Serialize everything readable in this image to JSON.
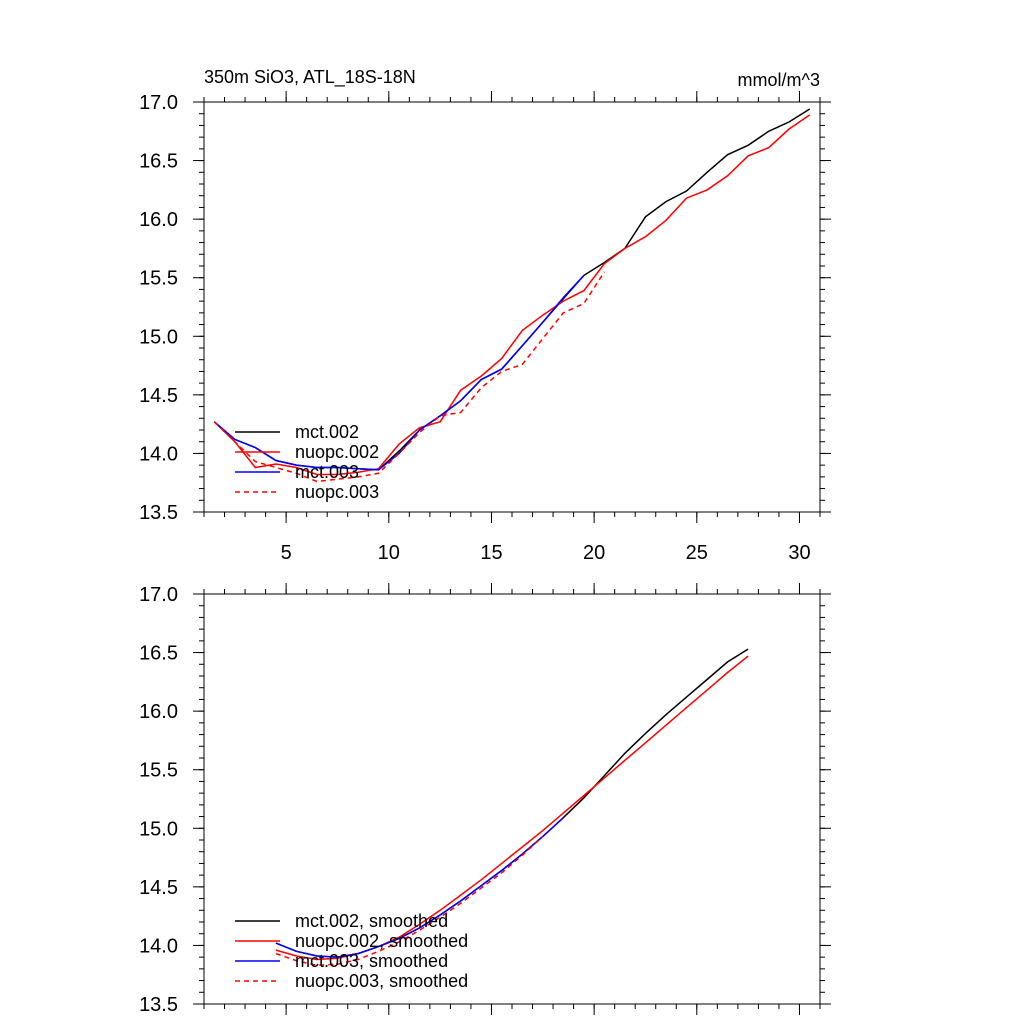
{
  "header": {
    "left_title": "350m SiO3, ATL_18S-18N",
    "right_title": "mmol/m^3"
  },
  "chart_data": [
    {
      "type": "line",
      "panel": "top",
      "xlim": [
        1,
        31
      ],
      "ylim": [
        13.5,
        17.0
      ],
      "x_ticks": [
        5,
        10,
        15,
        20,
        25,
        30
      ],
      "x_tick_labels": [
        "5",
        "10",
        "15",
        "20",
        "25",
        "30"
      ],
      "y_ticks": [
        13.5,
        14.0,
        14.5,
        15.0,
        15.5,
        16.0,
        16.5,
        17.0
      ],
      "y_tick_labels": [
        "13.5",
        "14.0",
        "14.5",
        "15.0",
        "15.5",
        "16.0",
        "16.5",
        "17.0"
      ],
      "legend_position": "lower-left",
      "series": [
        {
          "name": "mct.002",
          "color": "#000000",
          "dash": "solid",
          "x": [
            1.5,
            2.5,
            3.5,
            4.5,
            5.5,
            6.5,
            7.5,
            8.5,
            9.5,
            10.5,
            11.5,
            12.5,
            13.5,
            14.5,
            15.5,
            16.5,
            17.5,
            18.5,
            19.5,
            20.5,
            21.5,
            22.5,
            23.5,
            24.5,
            25.5,
            26.5,
            27.5,
            28.5,
            29.5,
            30.5
          ],
          "y": [
            14.27,
            14.12,
            14.05,
            13.94,
            13.9,
            13.88,
            13.88,
            13.87,
            13.86,
            14.02,
            14.2,
            14.32,
            14.45,
            14.63,
            14.72,
            14.92,
            15.12,
            15.32,
            15.52,
            15.63,
            15.75,
            16.02,
            16.15,
            16.24,
            16.4,
            16.55,
            16.63,
            16.75,
            16.83,
            16.94
          ]
        },
        {
          "name": "nuopc.002",
          "color": "#ff0000",
          "dash": "solid",
          "x": [
            1.5,
            2.5,
            3.5,
            4.5,
            5.5,
            6.5,
            7.5,
            8.5,
            9.5,
            10.5,
            11.5,
            12.5,
            13.5,
            14.5,
            15.5,
            16.5,
            17.5,
            18.5,
            19.5,
            20.5,
            21.5,
            22.5,
            23.5,
            24.5,
            25.5,
            26.5,
            27.5,
            28.5,
            29.5,
            30.5
          ],
          "y": [
            14.27,
            14.1,
            13.88,
            13.91,
            13.88,
            13.82,
            13.82,
            13.84,
            13.87,
            14.08,
            14.22,
            14.27,
            14.54,
            14.66,
            14.81,
            15.05,
            15.18,
            15.3,
            15.39,
            15.62,
            15.75,
            15.85,
            15.99,
            16.18,
            16.25,
            16.37,
            16.54,
            16.61,
            16.77,
            16.89
          ]
        },
        {
          "name": "mct.003",
          "color": "#0000ff",
          "dash": "solid",
          "x": [
            1.5,
            2.5,
            3.5,
            4.5,
            5.5,
            6.5,
            7.5,
            8.5,
            9.5,
            10.5,
            11.5,
            12.5,
            13.5,
            14.5,
            15.5,
            16.5,
            17.5,
            18.5,
            19.5
          ],
          "y": [
            14.27,
            14.12,
            14.05,
            13.94,
            13.9,
            13.88,
            13.88,
            13.87,
            13.86,
            14.0,
            14.2,
            14.32,
            14.45,
            14.63,
            14.72,
            14.92,
            15.12,
            15.33,
            15.52
          ]
        },
        {
          "name": "nuopc.003",
          "color": "#ff0000",
          "dash": "dashed",
          "x": [
            1.5,
            2.5,
            3.5,
            4.5,
            5.5,
            6.5,
            7.5,
            8.5,
            9.5,
            10.5,
            11.5,
            12.5,
            13.5,
            14.5,
            15.5,
            16.5,
            17.5,
            18.5,
            19.5,
            20.5
          ],
          "y": [
            14.27,
            14.1,
            13.93,
            13.88,
            13.83,
            13.76,
            13.78,
            13.8,
            13.83,
            14.0,
            14.18,
            14.32,
            14.35,
            14.56,
            14.7,
            14.76,
            14.98,
            15.2,
            15.28,
            15.55
          ]
        }
      ]
    },
    {
      "type": "line",
      "panel": "bottom",
      "xlim": [
        1,
        31
      ],
      "ylim": [
        13.5,
        17.0
      ],
      "x_ticks": [
        5,
        10,
        15,
        20,
        25,
        30
      ],
      "y_ticks": [
        13.5,
        14.0,
        14.5,
        15.0,
        15.5,
        16.0,
        16.5,
        17.0
      ],
      "y_tick_labels": [
        "13.5",
        "14.0",
        "14.5",
        "15.0",
        "15.5",
        "16.0",
        "16.5",
        "17.0"
      ],
      "legend_position": "lower-left",
      "series": [
        {
          "name": "mct.002, smoothed",
          "color": "#000000",
          "dash": "solid",
          "x": [
            4.5,
            5.5,
            6.5,
            7.5,
            8.5,
            9.5,
            10.5,
            11.5,
            12.5,
            13.5,
            14.5,
            15.5,
            16.5,
            17.5,
            18.5,
            19.5,
            20.5,
            21.5,
            22.5,
            23.5,
            24.5,
            25.5,
            26.5,
            27.5
          ],
          "y": [
            14.02,
            13.95,
            13.91,
            13.9,
            13.93,
            13.99,
            14.06,
            14.15,
            14.26,
            14.38,
            14.51,
            14.64,
            14.78,
            14.93,
            15.09,
            15.26,
            15.45,
            15.64,
            15.81,
            15.97,
            16.12,
            16.27,
            16.42,
            16.53
          ]
        },
        {
          "name": "nuopc.002, smoothed",
          "color": "#ff0000",
          "dash": "solid",
          "x": [
            4.5,
            5.5,
            6.5,
            7.5,
            8.5,
            9.5,
            10.5,
            11.5,
            12.5,
            13.5,
            14.5,
            15.5,
            16.5,
            17.5,
            18.5,
            19.5,
            20.5,
            21.5,
            22.5,
            23.5,
            24.5,
            25.5,
            26.5,
            27.5
          ],
          "y": [
            13.96,
            13.91,
            13.88,
            13.89,
            13.93,
            13.99,
            14.07,
            14.18,
            14.3,
            14.43,
            14.56,
            14.7,
            14.84,
            14.98,
            15.13,
            15.28,
            15.43,
            15.58,
            15.73,
            15.88,
            16.03,
            16.18,
            16.33,
            16.47
          ]
        },
        {
          "name": "mct.003, smoothed",
          "color": "#0000ff",
          "dash": "solid",
          "x": [
            4.5,
            5.5,
            6.5,
            7.5,
            8.5,
            9.5,
            10.5,
            11.5,
            12.5,
            13.5,
            14.5,
            15.5,
            16.5,
            17.5,
            18.5
          ],
          "y": [
            14.02,
            13.95,
            13.91,
            13.9,
            13.93,
            13.99,
            14.06,
            14.15,
            14.26,
            14.38,
            14.51,
            14.64,
            14.78,
            14.93,
            15.09
          ]
        },
        {
          "name": "nuopc.003, smoothed",
          "color": "#ff0000",
          "dash": "dashed",
          "x": [
            4.5,
            5.5,
            6.5,
            7.5,
            8.5,
            9.5,
            10.5,
            11.5,
            12.5,
            13.5,
            14.5,
            15.5,
            16.5,
            17.5
          ],
          "y": [
            13.93,
            13.87,
            13.83,
            13.84,
            13.88,
            13.95,
            14.03,
            14.13,
            14.24,
            14.36,
            14.49,
            14.62,
            14.77,
            14.93
          ]
        }
      ]
    }
  ]
}
